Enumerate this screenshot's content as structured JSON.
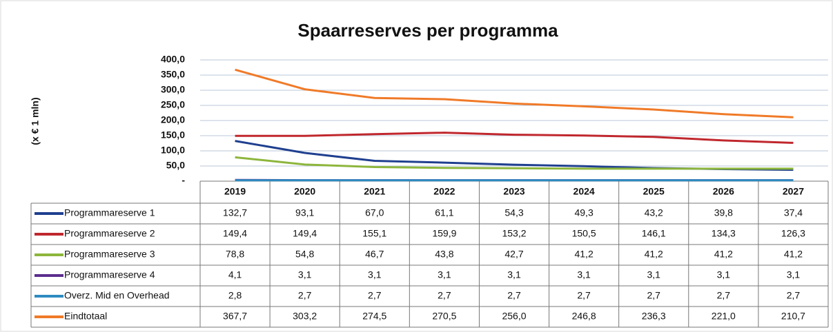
{
  "chart_data": {
    "type": "line",
    "title": "Spaarreserves per programma",
    "y_label": "(x € 1 mln)",
    "categories": [
      "2019",
      "2020",
      "2021",
      "2022",
      "2023",
      "2024",
      "2025",
      "2026",
      "2027"
    ],
    "ylim": [
      0,
      400
    ],
    "yticks": [
      {
        "value": 0,
        "label": "-"
      },
      {
        "value": 50,
        "label": "50,0"
      },
      {
        "value": 100,
        "label": "100,0"
      },
      {
        "value": 150,
        "label": "150,0"
      },
      {
        "value": 200,
        "label": "200,0"
      },
      {
        "value": 250,
        "label": "250,0"
      },
      {
        "value": 300,
        "label": "300,0"
      },
      {
        "value": 350,
        "label": "350,0"
      },
      {
        "value": 400,
        "label": "400,0"
      }
    ],
    "grid": true,
    "series": [
      {
        "name": "Programmareserve 1",
        "color": "#1f3f8f",
        "values": [
          132.7,
          93.1,
          67.0,
          61.1,
          54.3,
          49.3,
          43.2,
          39.8,
          37.4
        ],
        "value_labels": [
          "132,7",
          "93,1",
          "67,0",
          "61,1",
          "54,3",
          "49,3",
          "43,2",
          "39,8",
          "37,4"
        ]
      },
      {
        "name": "Programmareserve 2",
        "color": "#c0272d",
        "values": [
          149.4,
          149.4,
          155.1,
          159.9,
          153.2,
          150.5,
          146.1,
          134.3,
          126.3
        ],
        "value_labels": [
          "149,4",
          "149,4",
          "155,1",
          "159,9",
          "153,2",
          "150,5",
          "146,1",
          "134,3",
          "126,3"
        ]
      },
      {
        "name": "Programmareserve 3",
        "color": "#8db63c",
        "values": [
          78.8,
          54.8,
          46.7,
          43.8,
          42.7,
          41.2,
          41.2,
          41.2,
          41.2
        ],
        "value_labels": [
          "78,8",
          "54,8",
          "46,7",
          "43,8",
          "42,7",
          "41,2",
          "41,2",
          "41,2",
          "41,2"
        ]
      },
      {
        "name": "Programmareserve 4",
        "color": "#5b2d8e",
        "values": [
          4.1,
          3.1,
          3.1,
          3.1,
          3.1,
          3.1,
          3.1,
          3.1,
          3.1
        ],
        "value_labels": [
          "4,1",
          "3,1",
          "3,1",
          "3,1",
          "3,1",
          "3,1",
          "3,1",
          "3,1",
          "3,1"
        ]
      },
      {
        "name": "Overz. Mid en Overhead",
        "color": "#2e8bc0",
        "values": [
          2.8,
          2.7,
          2.7,
          2.7,
          2.7,
          2.7,
          2.7,
          2.7,
          2.7
        ],
        "value_labels": [
          "2,8",
          "2,7",
          "2,7",
          "2,7",
          "2,7",
          "2,7",
          "2,7",
          "2,7",
          "2,7"
        ]
      },
      {
        "name": "Eindtotaal",
        "color": "#f07a28",
        "values": [
          367.7,
          303.2,
          274.5,
          270.5,
          256.0,
          246.8,
          236.3,
          221.0,
          210.7
        ],
        "value_labels": [
          "367,7",
          "303,2",
          "274,5",
          "270,5",
          "256,0",
          "246,8",
          "236,3",
          "221,0",
          "210,7"
        ]
      }
    ]
  }
}
